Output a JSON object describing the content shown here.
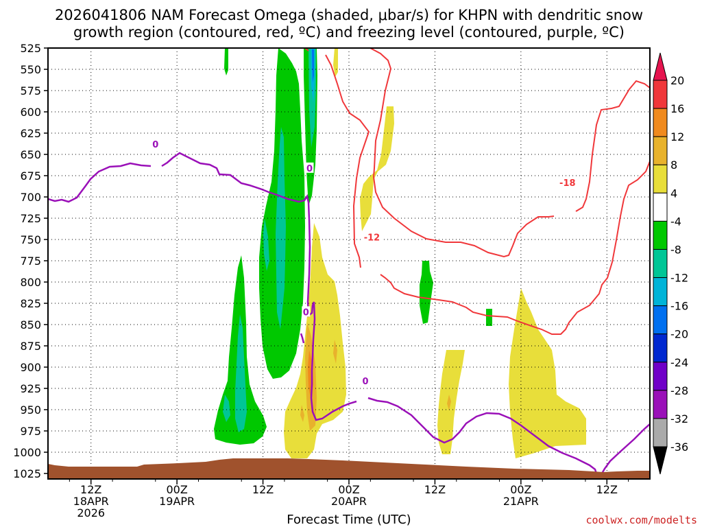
{
  "chart_data": {
    "type": "heatmap",
    "title_line1": "2026041806 NAM Forecast Omega (shaded, μbar/s) for KHPN with dendritic snow",
    "title_line2": "growth region (contoured, red, ºC) and freezing level (contoured, purple, ºC)",
    "xlabel": "Forecast Time (UTC)",
    "credit": "coolwx.com/modelts",
    "y_levels": [
      "525",
      "550",
      "575",
      "600",
      "625",
      "650",
      "675",
      "700",
      "725",
      "750",
      "775",
      "800",
      "825",
      "850",
      "875",
      "900",
      "925",
      "950",
      "975",
      "1000",
      "1025"
    ],
    "x_ticks": [
      {
        "hour": 6,
        "l1": "12Z",
        "l2": "18APR",
        "l3": "2026"
      },
      {
        "hour": 18,
        "l1": "00Z",
        "l2": "19APR",
        "l3": ""
      },
      {
        "hour": 30,
        "l1": "12Z",
        "l2": "",
        "l3": ""
      },
      {
        "hour": 42,
        "l1": "00Z",
        "l2": "20APR",
        "l3": ""
      },
      {
        "hour": 54,
        "l1": "12Z",
        "l2": "",
        "l3": ""
      },
      {
        "hour": 66,
        "l1": "00Z",
        "l2": "21APR",
        "l3": ""
      },
      {
        "hour": 78,
        "l1": "12Z",
        "l2": "",
        "l3": ""
      }
    ],
    "x_range_hours": [
      0,
      84
    ],
    "colorbar_labels": [
      "20",
      "16",
      "12",
      "8",
      "4",
      "-4",
      "-8",
      "-12",
      "-16",
      "-20",
      "-24",
      "-28",
      "-32",
      "-36"
    ],
    "colorbar_colors": [
      "#e6144f",
      "#f0373a",
      "#f08a1e",
      "#e8b22c",
      "#e8de3a",
      "#ffffff",
      "#00c800",
      "#00c696",
      "#00b4d8",
      "#0070f0",
      "#0028d0",
      "#7000c8",
      "#9a10b8",
      "#aaaaaa",
      "#000000"
    ],
    "contour_labels": [
      {
        "text": "0",
        "color": "#9a10b8",
        "p": 638,
        "hour": 15
      },
      {
        "text": "0",
        "color": "#9a10b8",
        "p": 666,
        "hour": 36.5
      },
      {
        "text": "0",
        "color": "#9a10b8",
        "p": 835,
        "hour": 36
      },
      {
        "text": "0",
        "color": "#9a10b8",
        "p": 916,
        "hour": 44.3
      },
      {
        "text": "-12",
        "color": "#f0373a",
        "p": 747,
        "hour": 45.2
      },
      {
        "text": "-18",
        "color": "#f0373a",
        "p": 683,
        "hour": 72.5
      }
    ],
    "terrain_color": "#a0522d"
  }
}
